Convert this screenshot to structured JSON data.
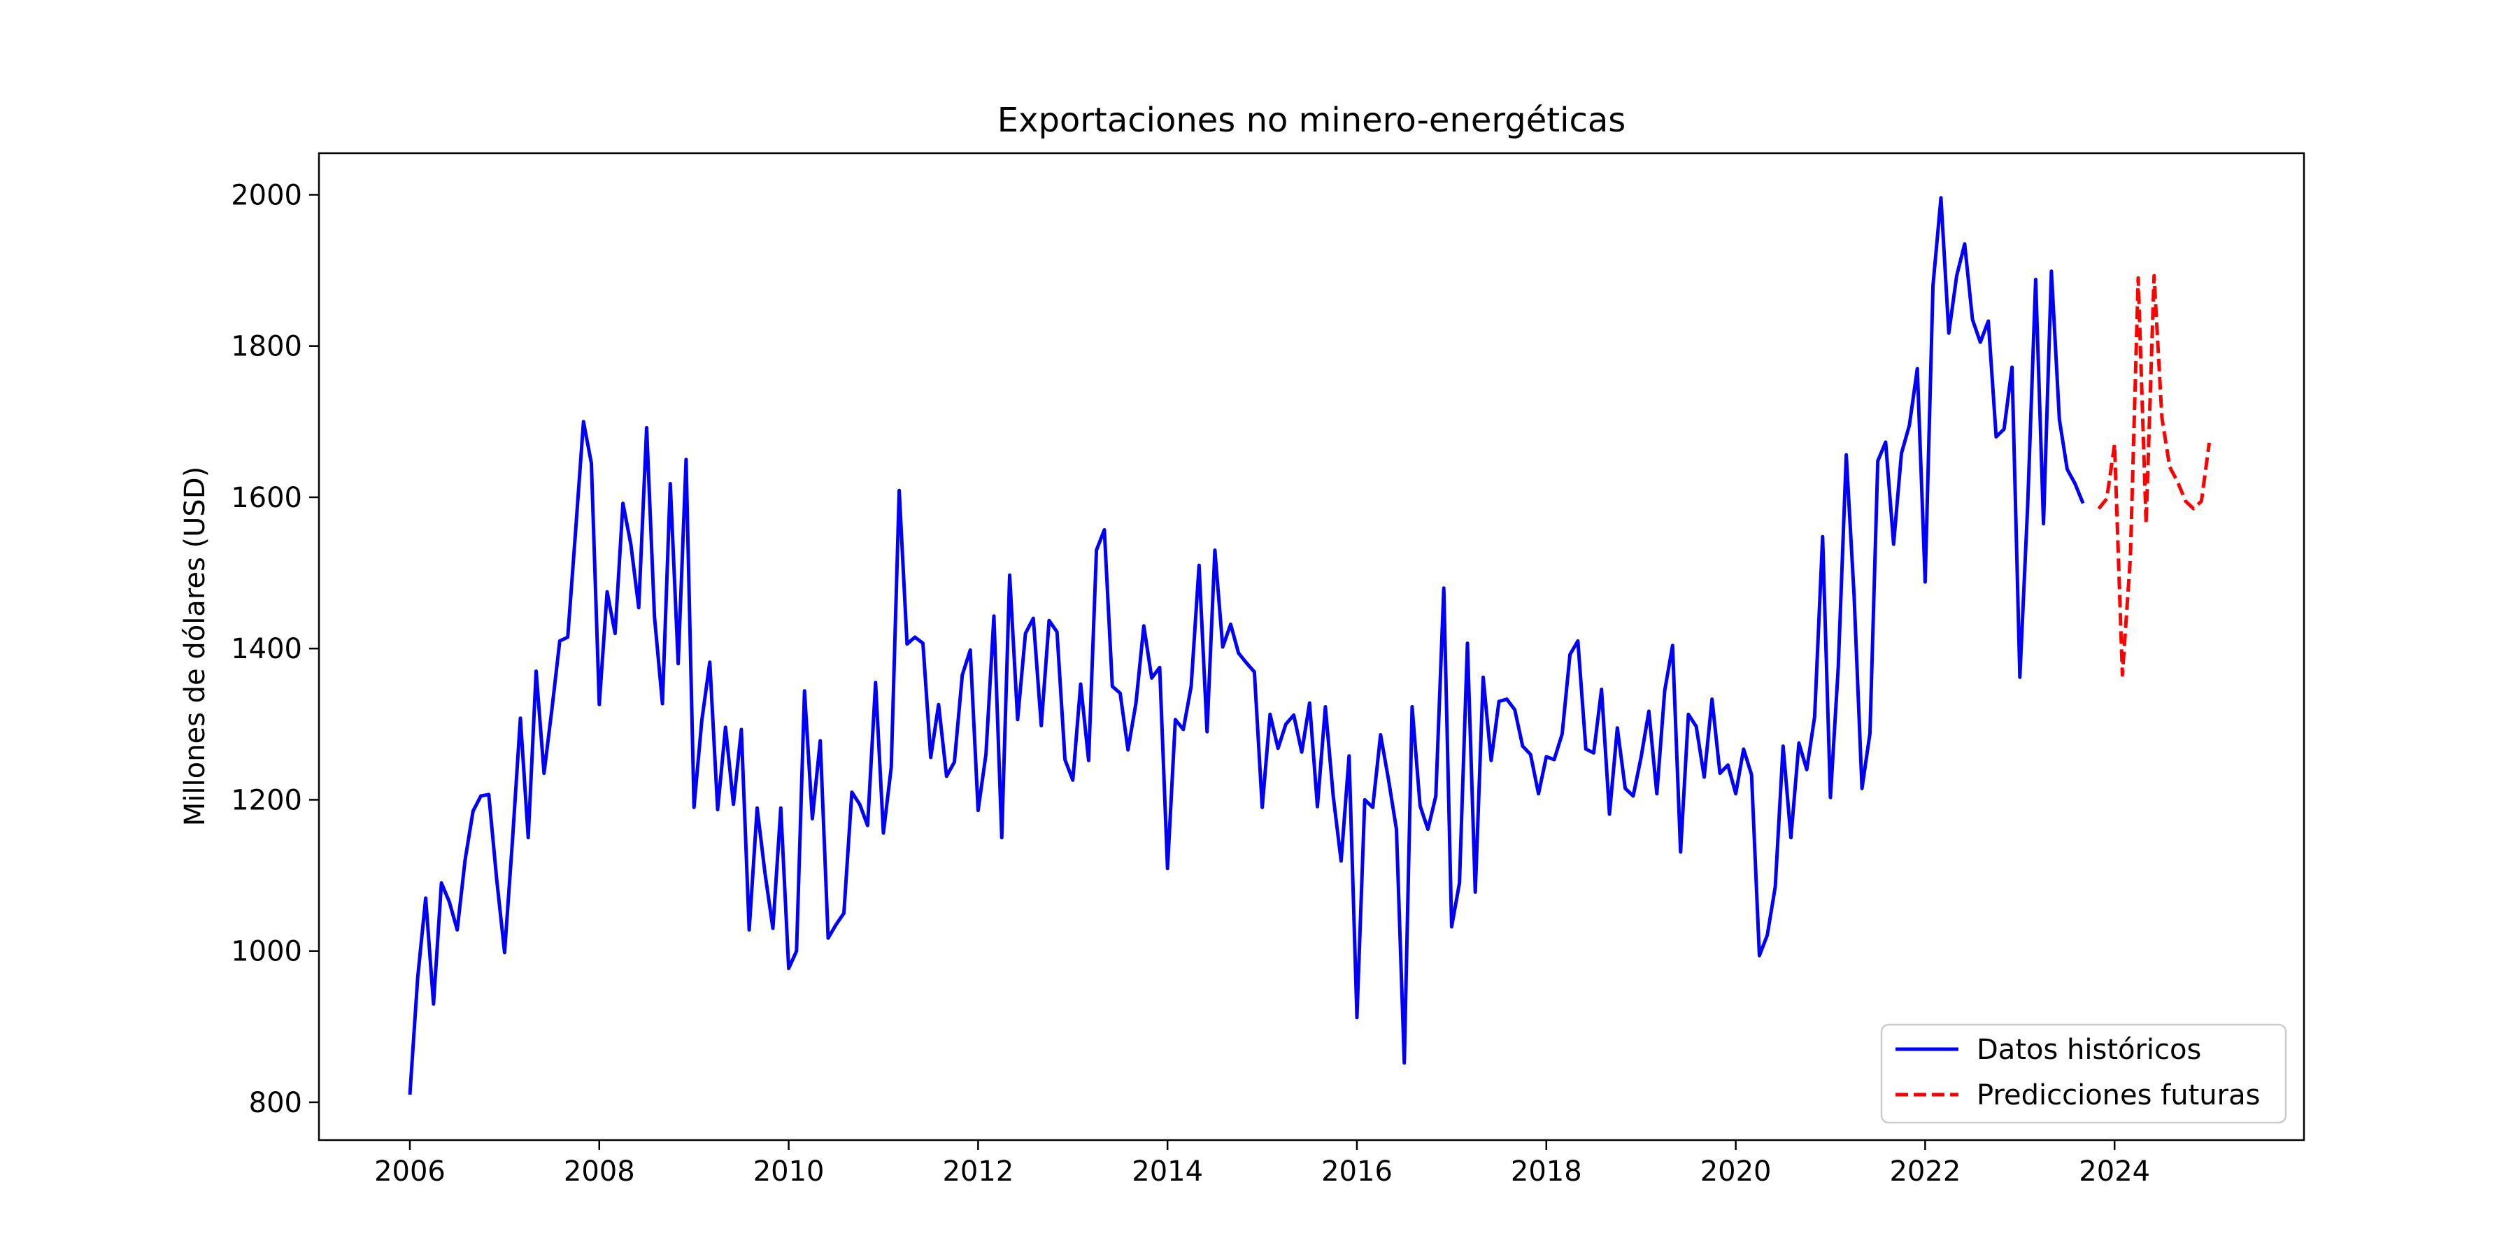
{
  "chart_data": {
    "type": "line",
    "title": "Exportaciones no minero-energéticas",
    "xlabel": "",
    "ylabel": "Millones de dólares (USD)",
    "xlim": [
      2005.04,
      2026.0
    ],
    "ylim": [
      750,
      2055
    ],
    "xticks": [
      2006,
      2008,
      2010,
      2012,
      2014,
      2016,
      2018,
      2020,
      2022,
      2024
    ],
    "yticks": [
      800,
      1000,
      1200,
      1400,
      1600,
      1800,
      2000
    ],
    "grid": false,
    "legend_position": "bottom-right",
    "series": [
      {
        "name": "Datos históricos",
        "color": "#0000ff",
        "style": "solid",
        "x": [
          2006.0,
          2006.083,
          2006.167,
          2006.25,
          2006.333,
          2006.417,
          2006.5,
          2006.583,
          2006.667,
          2006.75,
          2006.833,
          2006.917,
          2007.0,
          2007.083,
          2007.167,
          2007.25,
          2007.333,
          2007.417,
          2007.5,
          2007.583,
          2007.667,
          2007.75,
          2007.833,
          2007.917,
          2008.0,
          2008.083,
          2008.167,
          2008.25,
          2008.333,
          2008.417,
          2008.5,
          2008.583,
          2008.667,
          2008.75,
          2008.833,
          2008.917,
          2009.0,
          2009.083,
          2009.167,
          2009.25,
          2009.333,
          2009.417,
          2009.5,
          2009.583,
          2009.667,
          2009.75,
          2009.833,
          2009.917,
          2010.0,
          2010.083,
          2010.167,
          2010.25,
          2010.333,
          2010.417,
          2010.5,
          2010.583,
          2010.667,
          2010.75,
          2010.833,
          2010.917,
          2011.0,
          2011.083,
          2011.167,
          2011.25,
          2011.333,
          2011.417,
          2011.5,
          2011.583,
          2011.667,
          2011.75,
          2011.833,
          2011.917,
          2012.0,
          2012.083,
          2012.167,
          2012.25,
          2012.333,
          2012.417,
          2012.5,
          2012.583,
          2012.667,
          2012.75,
          2012.833,
          2012.917,
          2013.0,
          2013.083,
          2013.167,
          2013.25,
          2013.333,
          2013.417,
          2013.5,
          2013.583,
          2013.667,
          2013.75,
          2013.833,
          2013.917,
          2014.0,
          2014.083,
          2014.167,
          2014.25,
          2014.333,
          2014.417,
          2014.5,
          2014.583,
          2014.667,
          2014.75,
          2014.833,
          2014.917,
          2015.0,
          2015.083,
          2015.167,
          2015.25,
          2015.333,
          2015.417,
          2015.5,
          2015.583,
          2015.667,
          2015.75,
          2015.833,
          2015.917,
          2016.0,
          2016.083,
          2016.167,
          2016.25,
          2016.333,
          2016.417,
          2016.5,
          2016.583,
          2016.667,
          2016.75,
          2016.833,
          2016.917,
          2017.0,
          2017.083,
          2017.167,
          2017.25,
          2017.333,
          2017.417,
          2017.5,
          2017.583,
          2017.667,
          2017.75,
          2017.833,
          2017.917,
          2018.0,
          2018.083,
          2018.167,
          2018.25,
          2018.333,
          2018.417,
          2018.5,
          2018.583,
          2018.667,
          2018.75,
          2018.833,
          2018.917,
          2019.0,
          2019.083,
          2019.167,
          2019.25,
          2019.333,
          2019.417,
          2019.5,
          2019.583,
          2019.667,
          2019.75,
          2019.833,
          2019.917,
          2020.0,
          2020.083,
          2020.167,
          2020.25,
          2020.333,
          2020.417,
          2020.5,
          2020.583,
          2020.667,
          2020.75,
          2020.833,
          2020.917,
          2021.0,
          2021.083,
          2021.167,
          2021.25,
          2021.333,
          2021.417,
          2021.5,
          2021.583,
          2021.667,
          2021.75,
          2021.833,
          2021.917,
          2022.0,
          2022.083,
          2022.167,
          2022.25,
          2022.333,
          2022.417,
          2022.5,
          2022.583,
          2022.667,
          2022.75,
          2022.833,
          2022.917,
          2023.0,
          2023.083,
          2023.167,
          2023.25,
          2023.333,
          2023.417,
          2023.5,
          2023.583,
          2023.667
        ],
        "y": [
          810,
          965,
          1070,
          930,
          1090,
          1065,
          1028,
          1120,
          1185,
          1205,
          1207,
          1095,
          998,
          1145,
          1308,
          1150,
          1370,
          1235,
          1320,
          1410,
          1415,
          1555,
          1700,
          1645,
          1326,
          1475,
          1420,
          1592,
          1538,
          1454,
          1692,
          1442,
          1327,
          1618,
          1380,
          1650,
          1190,
          1305,
          1382,
          1187,
          1296,
          1194,
          1293,
          1028,
          1189,
          1103,
          1030,
          1189,
          977,
          1000,
          1344,
          1175,
          1278,
          1017,
          1035,
          1050,
          1210,
          1194,
          1166,
          1355,
          1156,
          1243,
          1609,
          1406,
          1415,
          1407,
          1256,
          1326,
          1231,
          1250,
          1365,
          1398,
          1186,
          1260,
          1443,
          1150,
          1497,
          1306,
          1420,
          1440,
          1298,
          1437,
          1422,
          1253,
          1226,
          1353,
          1252,
          1530,
          1557,
          1350,
          1341,
          1266,
          1328,
          1430,
          1361,
          1375,
          1109,
          1306,
          1293,
          1350,
          1510,
          1290,
          1530,
          1402,
          1432,
          1394,
          1381,
          1369,
          1190,
          1313,
          1268,
          1300,
          1312,
          1263,
          1328,
          1191,
          1323,
          1205,
          1119,
          1258,
          912,
          1200,
          1190,
          1286,
          1227,
          1161,
          852,
          1323,
          1192,
          1161,
          1205,
          1480,
          1032,
          1090,
          1407,
          1078,
          1362,
          1252,
          1330,
          1333,
          1319,
          1271,
          1260,
          1208,
          1257,
          1253,
          1287,
          1392,
          1410,
          1267,
          1262,
          1346,
          1181,
          1295,
          1215,
          1205,
          1256,
          1317,
          1208,
          1344,
          1404,
          1131,
          1313,
          1297,
          1230,
          1333,
          1235,
          1246,
          1208,
          1267,
          1233,
          994,
          1021,
          1085,
          1271,
          1150,
          1275,
          1240,
          1310,
          1548,
          1203,
          1376,
          1656,
          1470,
          1215,
          1288,
          1648,
          1673,
          1538,
          1658,
          1695,
          1770,
          1488,
          1880,
          1996,
          1817,
          1893,
          1935,
          1835,
          1805,
          1833,
          1680,
          1690,
          1772,
          1362,
          1590,
          1888,
          1565,
          1899,
          1703,
          1637,
          1618,
          1592
        ]
      },
      {
        "name": "Predicciones futuras",
        "color": "#ff0000",
        "style": "dashed",
        "x": [
          2023.833,
          2023.917,
          2024.0,
          2024.083,
          2024.167,
          2024.25,
          2024.333,
          2024.417,
          2024.5,
          2024.583,
          2024.667,
          2024.75,
          2024.833,
          2024.917,
          2025.0
        ],
        "y": [
          1585,
          1598,
          1670,
          1365,
          1520,
          1890,
          1565,
          1893,
          1705,
          1640,
          1620,
          1595,
          1585,
          1595,
          1672
        ]
      }
    ]
  }
}
